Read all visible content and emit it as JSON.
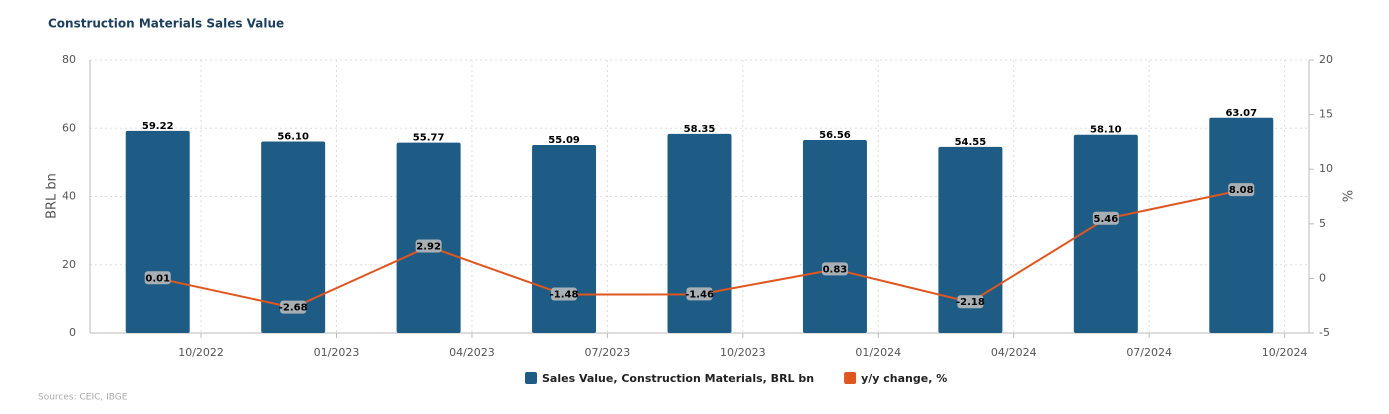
{
  "chart_data": {
    "type": "bar",
    "title": "Construction Materials Sales Value",
    "categories": [
      "10/2022",
      "01/2023",
      "04/2023",
      "07/2023",
      "10/2023",
      "01/2024",
      "04/2024",
      "07/2024",
      "10/2024"
    ],
    "y_label": "BRL bn",
    "y2_label": "%",
    "source": "Sources: CEIC, IBGE",
    "series": [
      {
        "name": "Sales Value, Construction Materials, BRL bn",
        "color": "#1f5c85",
        "type": "bar",
        "values": [
          59.22,
          56.1,
          55.77,
          55.09,
          58.35,
          56.56,
          54.55,
          58.1,
          63.07
        ],
        "value_labels": [
          "59.22",
          "56.10",
          "55.77",
          "55.09",
          "58.35",
          "56.56",
          "54.55",
          "58.10",
          "63.07"
        ]
      },
      {
        "name": "y/y change, %",
        "color": "#e0561f",
        "type": "line",
        "axis": "y2",
        "values": [
          0.01,
          -2.68,
          2.92,
          -1.48,
          -1.46,
          0.83,
          -2.18,
          5.46,
          8.08
        ]
      }
    ],
    "ylim": [
      0,
      80
    ],
    "yticks": [
      0,
      20,
      40,
      60,
      80
    ],
    "y2lim": [
      -5,
      20
    ],
    "y2ticks": [
      -5,
      0,
      5,
      10,
      15,
      20
    ],
    "grid": true
  }
}
